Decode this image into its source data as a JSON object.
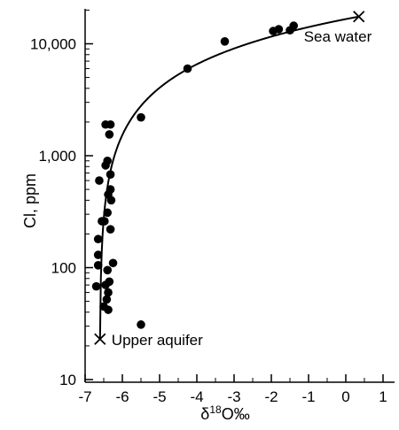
{
  "chart_data": {
    "type": "scatter",
    "title": "",
    "xlabel": {
      "prefix": "δ",
      "sup": "18",
      "suffix": "O‰"
    },
    "ylabel": "Cl, ppm",
    "xlim": [
      -7,
      1
    ],
    "ylim": [
      10,
      20000
    ],
    "yscale": "log",
    "grid": false,
    "legend": "none",
    "x_ticks": [
      -7,
      -6,
      -5,
      -4,
      -3,
      -2,
      -1,
      0,
      1
    ],
    "x_tick_labels": [
      "-7",
      "-6",
      "-5",
      "-4",
      "-3",
      "-2",
      "-1",
      "0",
      "1"
    ],
    "y_ticks": [
      10,
      100,
      1000,
      10000
    ],
    "y_tick_labels": [
      "10",
      "100",
      "1,000",
      "10,000"
    ],
    "points": [
      {
        "x": -6.62,
        "y": 600
      },
      {
        "x": -6.65,
        "y": 180
      },
      {
        "x": -6.65,
        "y": 130
      },
      {
        "x": -6.65,
        "y": 105
      },
      {
        "x": -6.7,
        "y": 68
      },
      {
        "x": -6.55,
        "y": 260
      },
      {
        "x": -6.48,
        "y": 260
      },
      {
        "x": -6.45,
        "y": 1900
      },
      {
        "x": -6.32,
        "y": 1900
      },
      {
        "x": -6.35,
        "y": 1550
      },
      {
        "x": -6.45,
        "y": 820
      },
      {
        "x": -6.4,
        "y": 900
      },
      {
        "x": -6.32,
        "y": 680
      },
      {
        "x": -6.38,
        "y": 450
      },
      {
        "x": -6.32,
        "y": 500
      },
      {
        "x": -6.3,
        "y": 400
      },
      {
        "x": -6.4,
        "y": 310
      },
      {
        "x": -6.32,
        "y": 220
      },
      {
        "x": -6.25,
        "y": 110
      },
      {
        "x": -6.4,
        "y": 95
      },
      {
        "x": -6.45,
        "y": 70
      },
      {
        "x": -6.35,
        "y": 75
      },
      {
        "x": -6.38,
        "y": 60
      },
      {
        "x": -6.42,
        "y": 52
      },
      {
        "x": -6.5,
        "y": 45
      },
      {
        "x": -6.38,
        "y": 42
      },
      {
        "x": -5.5,
        "y": 2200
      },
      {
        "x": -5.5,
        "y": 31
      },
      {
        "x": -4.25,
        "y": 6000
      },
      {
        "x": -3.25,
        "y": 10500
      },
      {
        "x": -1.95,
        "y": 13000
      },
      {
        "x": -1.8,
        "y": 13500
      },
      {
        "x": -1.5,
        "y": 13200
      },
      {
        "x": -1.4,
        "y": 14500
      }
    ],
    "end_members": [
      {
        "name": "Sea water",
        "x": 0.35,
        "y": 17500
      },
      {
        "name": "Upper aquifer",
        "x": -6.6,
        "y": 23
      }
    ],
    "mixing_curve": {
      "from": {
        "x": -6.6,
        "y": 23
      },
      "to": {
        "x": 0.35,
        "y": 17500
      }
    }
  }
}
